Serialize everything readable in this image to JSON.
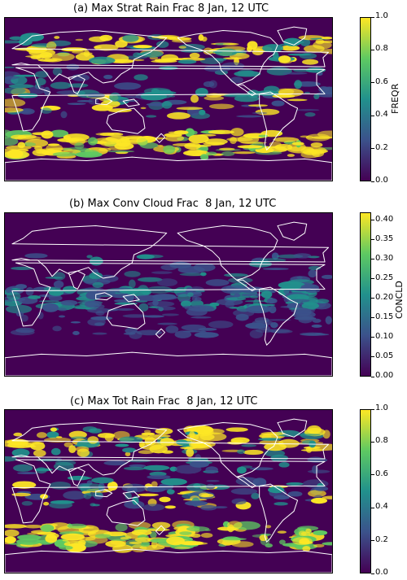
{
  "panels": [
    {
      "title": "(a) Max Strat Rain Frac 8 Jan, 12 UTC",
      "colorbar_label": "FREQR",
      "ticks": [
        "0.0",
        "0.2",
        "0.4",
        "0.6",
        "0.8",
        "1.0"
      ],
      "range": [
        0.0,
        1.0
      ]
    },
    {
      "title": "(b) Max Conv Cloud Frac  8 Jan, 12 UTC",
      "colorbar_label": "CONCLD",
      "ticks": [
        "0.00",
        "0.05",
        "0.10",
        "0.15",
        "0.20",
        "0.25",
        "0.30",
        "0.35",
        "0.40"
      ],
      "range": [
        0.0,
        0.42
      ]
    },
    {
      "title": "(c) Max Tot Rain Frac  8 Jan, 12 UTC",
      "colorbar_label": "",
      "ticks": [
        "0.0",
        "0.2",
        "0.4",
        "0.6",
        "0.8",
        "1.0"
      ],
      "range": [
        0.0,
        1.0
      ]
    }
  ],
  "colors": {
    "background": "#440154",
    "low": "#3b528b",
    "mid": "#21918c",
    "high": "#5ec962",
    "max": "#fde725",
    "coastline": "#ffffff"
  }
}
